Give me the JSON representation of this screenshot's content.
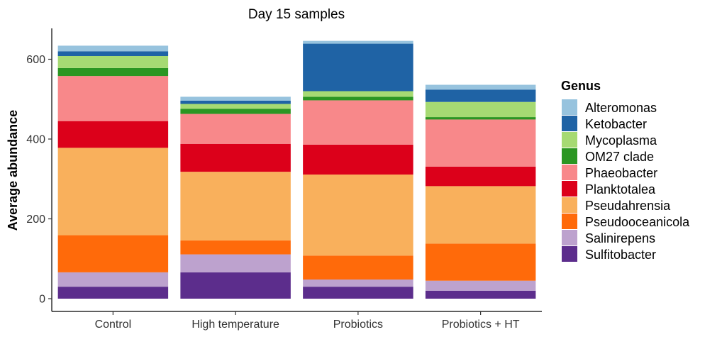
{
  "chart_data": {
    "type": "bar",
    "stacked": true,
    "title": "Day 15 samples",
    "xlabel": "",
    "ylabel": "Average abundance",
    "ylim": [
      0,
      680
    ],
    "yticks": [
      0,
      200,
      400,
      600
    ],
    "categories": [
      "Control",
      "High temperature",
      "Probiotics",
      "Probiotics + HT"
    ],
    "legend": {
      "title": "Genus",
      "position": "right"
    },
    "series": [
      {
        "name": "Sulfitobacter",
        "color": "#5C2D8C",
        "values": [
          30,
          66,
          30,
          20
        ]
      },
      {
        "name": "Salinirepens",
        "color": "#BDA2CE",
        "values": [
          36,
          45,
          18,
          25
        ]
      },
      {
        "name": "Pseudooceanicola",
        "color": "#FF6A0A",
        "values": [
          93,
          35,
          60,
          93
        ]
      },
      {
        "name": "Pseudahrensia",
        "color": "#F9B05C",
        "values": [
          219,
          172,
          203,
          144
        ]
      },
      {
        "name": "Planktotalea",
        "color": "#DC001A",
        "values": [
          67,
          70,
          75,
          49
        ]
      },
      {
        "name": "Phaeobacter",
        "color": "#F8888A",
        "values": [
          113,
          75,
          111,
          118
        ]
      },
      {
        "name": "OM27 clade",
        "color": "#2B9622",
        "values": [
          20,
          13,
          9,
          6
        ]
      },
      {
        "name": "Mycoplasma",
        "color": "#A6DA73",
        "values": [
          30,
          12,
          14,
          38
        ]
      },
      {
        "name": "Ketobacter",
        "color": "#1F63A5",
        "values": [
          12,
          8,
          119,
          31
        ]
      },
      {
        "name": "Alteromonas",
        "color": "#97C3DE",
        "values": [
          14,
          10,
          7,
          12
        ]
      }
    ]
  }
}
